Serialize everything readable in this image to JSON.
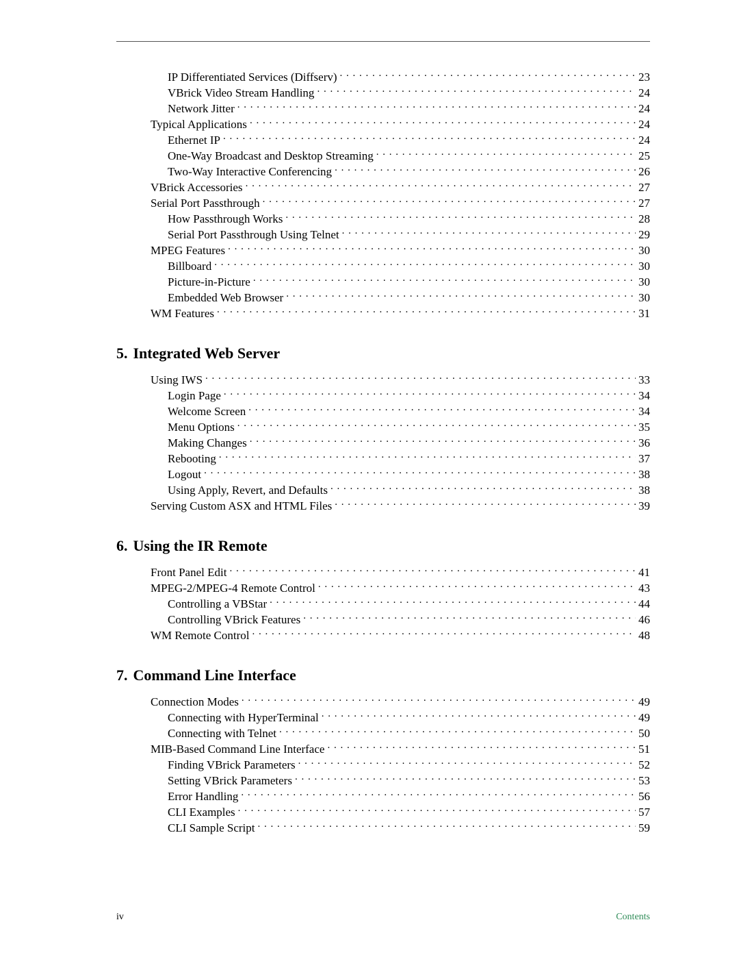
{
  "colors": {
    "text": "#000000",
    "rule": "#555555",
    "footer_accent": "#2e8b57",
    "background": "#ffffff"
  },
  "typography": {
    "body_font": "Garamond / Times New Roman serif",
    "body_size_pt": 12,
    "heading_size_pt": 16,
    "heading_weight": "bold"
  },
  "top_block": {
    "rows": [
      {
        "level": 2,
        "label": "IP Differentiated Services (Diffserv)",
        "page": "23"
      },
      {
        "level": 2,
        "label": "VBrick Video Stream Handling",
        "page": "24"
      },
      {
        "level": 2,
        "label": "Network Jitter",
        "page": "24"
      },
      {
        "level": 1,
        "label": "Typical Applications",
        "page": "24"
      },
      {
        "level": 2,
        "label": "Ethernet IP",
        "page": "24"
      },
      {
        "level": 2,
        "label": "One-Way Broadcast and Desktop Streaming",
        "page": "25"
      },
      {
        "level": 2,
        "label": "Two-Way Interactive Conferencing",
        "page": "26"
      },
      {
        "level": 1,
        "label": "VBrick Accessories",
        "page": "27"
      },
      {
        "level": 1,
        "label": "Serial Port Passthrough",
        "page": "27"
      },
      {
        "level": 2,
        "label": "How Passthrough Works",
        "page": "28"
      },
      {
        "level": 2,
        "label": "Serial Port Passthrough Using Telnet",
        "page": "29"
      },
      {
        "level": 1,
        "label": "MPEG Features",
        "page": "30"
      },
      {
        "level": 2,
        "label": "Billboard",
        "page": "30"
      },
      {
        "level": 2,
        "label": "Picture-in-Picture",
        "page": "30"
      },
      {
        "level": 2,
        "label": "Embedded Web Browser",
        "page": "30"
      },
      {
        "level": 1,
        "label": "WM Features",
        "page": "31"
      }
    ]
  },
  "sections": [
    {
      "number": "5.",
      "title": "Integrated Web Server",
      "rows": [
        {
          "level": 1,
          "label": "Using IWS",
          "page": "33"
        },
        {
          "level": 2,
          "label": "Login Page",
          "page": "34"
        },
        {
          "level": 2,
          "label": "Welcome Screen",
          "page": "34"
        },
        {
          "level": 2,
          "label": "Menu Options",
          "page": "35"
        },
        {
          "level": 2,
          "label": "Making Changes",
          "page": "36"
        },
        {
          "level": 2,
          "label": "Rebooting",
          "page": "37"
        },
        {
          "level": 2,
          "label": "Logout",
          "page": "38"
        },
        {
          "level": 2,
          "label": "Using Apply, Revert, and Defaults",
          "page": "38"
        },
        {
          "level": 1,
          "label": "Serving Custom ASX and HTML Files",
          "page": "39"
        }
      ]
    },
    {
      "number": "6.",
      "title": "Using the IR Remote",
      "rows": [
        {
          "level": 1,
          "label": "Front Panel Edit",
          "page": "41"
        },
        {
          "level": 1,
          "label": "MPEG-2/MPEG-4 Remote Control",
          "page": "43"
        },
        {
          "level": 2,
          "label": "Controlling a VBStar",
          "page": "44"
        },
        {
          "level": 2,
          "label": "Controlling VBrick Features",
          "page": "46"
        },
        {
          "level": 1,
          "label": "WM Remote Control",
          "page": "48"
        }
      ]
    },
    {
      "number": "7.",
      "title": "Command Line Interface",
      "rows": [
        {
          "level": 1,
          "label": "Connection Modes",
          "page": "49"
        },
        {
          "level": 2,
          "label": "Connecting with HyperTerminal",
          "page": "49"
        },
        {
          "level": 2,
          "label": "Connecting with Telnet",
          "page": "50"
        },
        {
          "level": 1,
          "label": "MIB-Based Command Line Interface",
          "page": "51"
        },
        {
          "level": 2,
          "label": "Finding VBrick Parameters",
          "page": "52"
        },
        {
          "level": 2,
          "label": "Setting VBrick Parameters",
          "page": "53"
        },
        {
          "level": 2,
          "label": "Error Handling",
          "page": "56"
        },
        {
          "level": 2,
          "label": "CLI Examples",
          "page": "57"
        },
        {
          "level": 2,
          "label": "CLI Sample Script",
          "page": "59"
        }
      ]
    }
  ],
  "footer": {
    "left": "iv",
    "right": "Contents"
  }
}
